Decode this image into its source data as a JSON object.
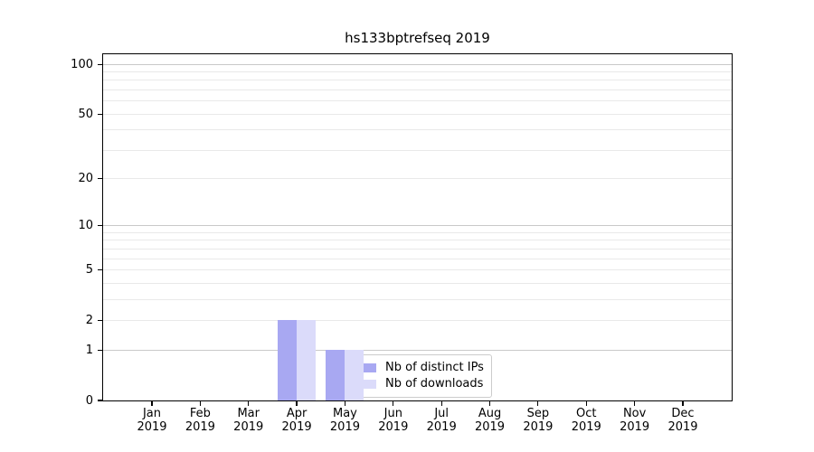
{
  "figure": {
    "background": "#ffffff",
    "axis_color": "#000000",
    "grid_major_color": "#c9c9c9",
    "grid_minor_color": "#e9e9e9"
  },
  "chart_data": {
    "type": "bar",
    "title": "hs133bptrefseq 2019",
    "xlabel": "",
    "ylabel": "",
    "yscale": "log1p",
    "ylim": [
      0,
      115
    ],
    "grid": "on",
    "legend_position": "lower-center-inside",
    "legend_frame_alpha": 0.8,
    "categories": [
      "Jan 2019",
      "Feb 2019",
      "Mar 2019",
      "Apr 2019",
      "May 2019",
      "Jun 2019",
      "Jul 2019",
      "Aug 2019",
      "Sep 2019",
      "Oct 2019",
      "Nov 2019",
      "Dec 2019"
    ],
    "yticks": [
      0,
      1,
      2,
      5,
      10,
      20,
      50,
      100
    ],
    "grid_major": [
      1,
      10,
      100
    ],
    "grid_minor": [
      2,
      3,
      4,
      5,
      6,
      7,
      8,
      9,
      20,
      30,
      40,
      50,
      60,
      70,
      80,
      90
    ],
    "series": [
      {
        "name": "Nb of distinct IPs",
        "color": "#a8a8f2",
        "values": [
          0,
          0,
          0,
          2,
          1,
          0,
          0,
          0,
          0,
          0,
          0,
          0
        ]
      },
      {
        "name": "Nb of downloads",
        "color": "#dbdbfa",
        "values": [
          0,
          0,
          0,
          2,
          1,
          0,
          0,
          0,
          0,
          0,
          0,
          0
        ]
      }
    ]
  }
}
